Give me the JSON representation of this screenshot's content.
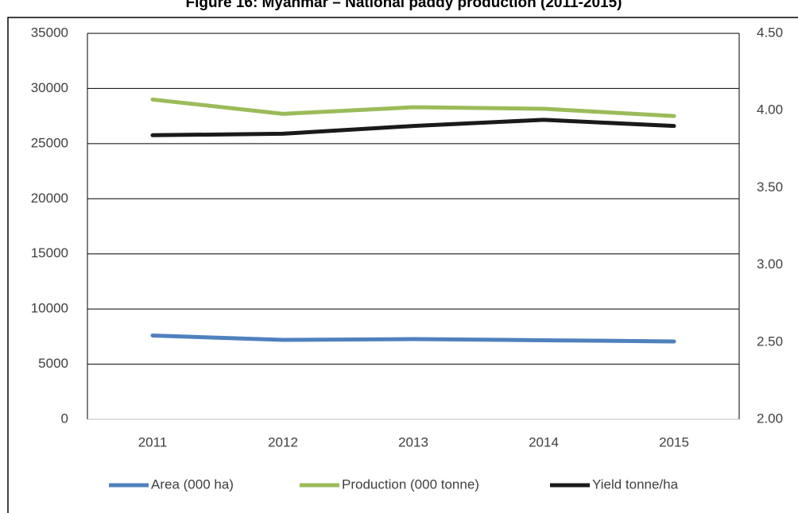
{
  "chart_data": {
    "type": "line",
    "title": "Figure 16: Myanmar – National paddy production (2011-2015)",
    "categories": [
      "2011",
      "2012",
      "2013",
      "2014",
      "2015"
    ],
    "series": [
      {
        "name": "Area (000 ha)",
        "color": "#4f81bd",
        "values": [
          7600,
          7200,
          7270,
          7170,
          7060
        ]
      },
      {
        "name": "Production (000 tonne)",
        "color": "#9bbb59",
        "values": [
          29000,
          27700,
          28300,
          28160,
          27500
        ]
      },
      {
        "name": "Yield tonne/ha",
        "color": "#1a1a1a",
        "axis": "y2",
        "values": [
          3.84,
          3.85,
          3.9,
          3.94,
          3.9
        ]
      }
    ],
    "ylim": [
      0,
      35000
    ],
    "yticks": [
      0,
      5000,
      10000,
      15000,
      20000,
      25000,
      30000,
      35000
    ],
    "y2lim": [
      2.0,
      4.5
    ],
    "y2ticks": [
      {
        "value": 2.0,
        "label": "2.00"
      },
      {
        "value": 2.5,
        "label": "2.50"
      },
      {
        "value": 3.0,
        "label": "3.00"
      },
      {
        "value": 3.5,
        "label": "3.50"
      },
      {
        "value": 4.0,
        "label": "4.00"
      },
      {
        "value": 4.5,
        "label": "4.50"
      }
    ],
    "grid": true,
    "legend": "bottom"
  }
}
